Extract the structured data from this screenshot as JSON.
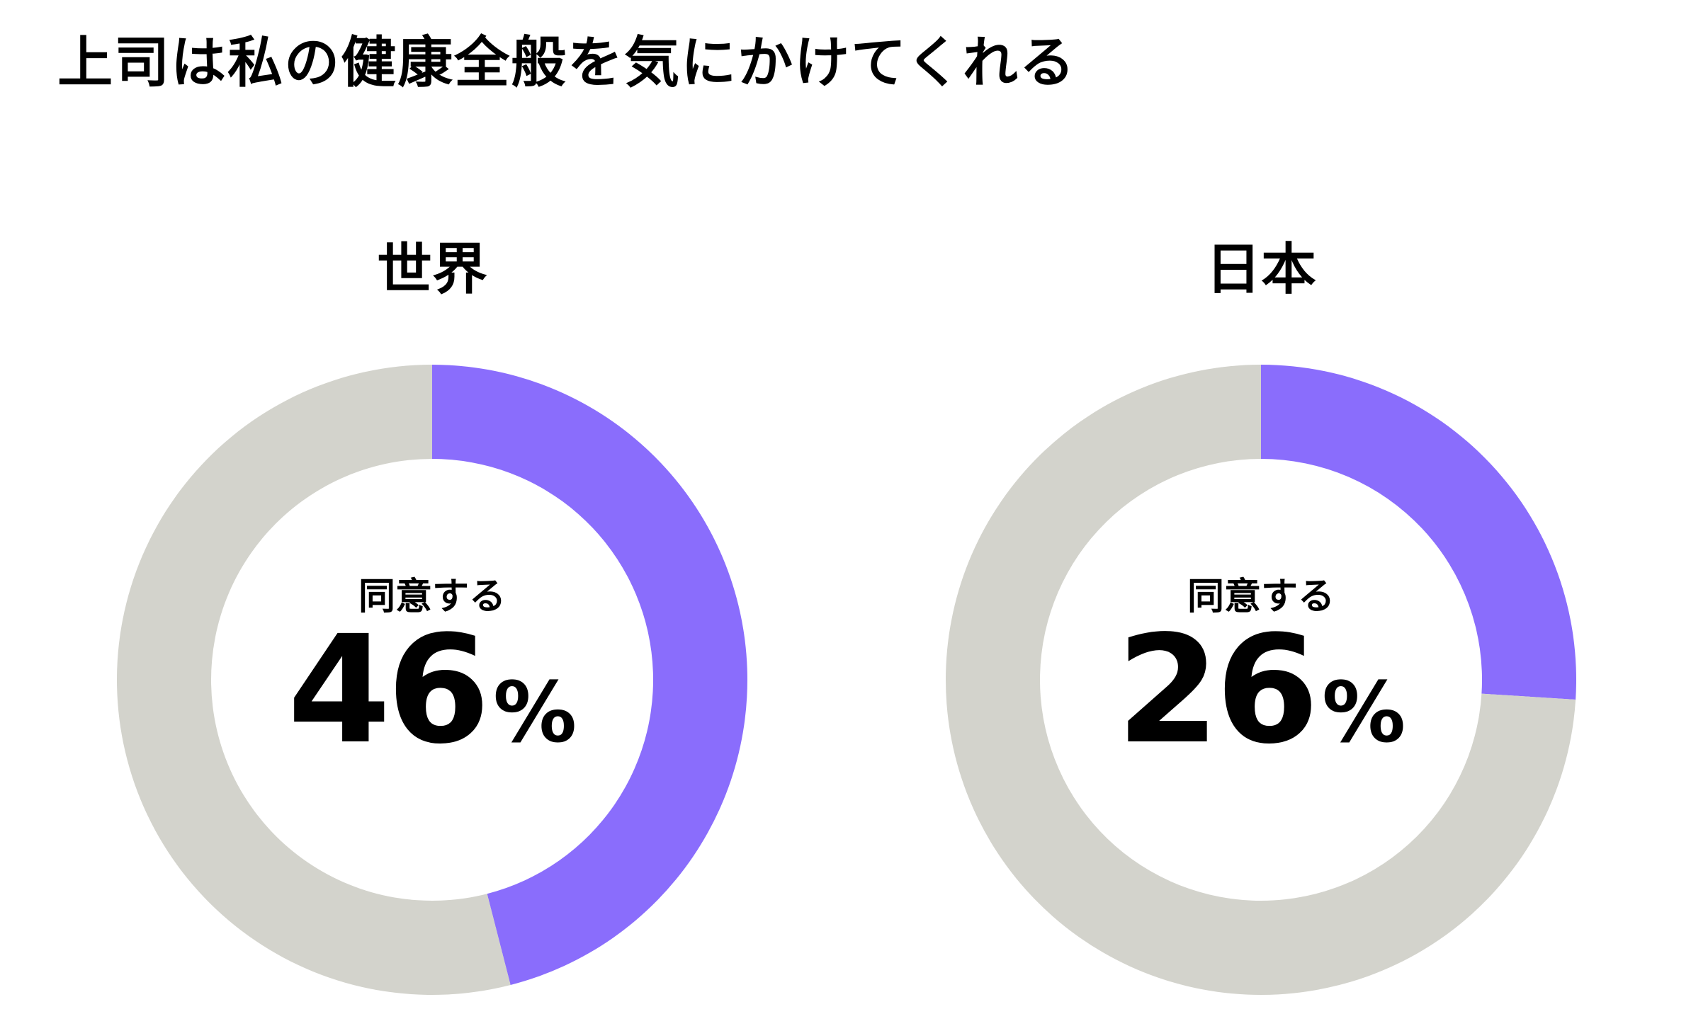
{
  "title": "上司は私の健康全般を気にかけてくれる",
  "colors": {
    "agree": "#8a6dfc",
    "rest": "#d3d3cc",
    "background": "#ffffff",
    "text": "#000000"
  },
  "chart_data": [
    {
      "type": "pie",
      "title": "世界",
      "center_label": "同意する",
      "value": 46,
      "value_text": "46",
      "unit": "%",
      "slices": [
        {
          "label": "同意する",
          "value": 46,
          "color": "#8a6dfc"
        },
        {
          "label": "",
          "value": 54,
          "color": "#d3d3cc"
        }
      ]
    },
    {
      "type": "pie",
      "title": "日本",
      "center_label": "同意する",
      "value": 26,
      "value_text": "26",
      "unit": "%",
      "slices": [
        {
          "label": "同意する",
          "value": 26,
          "color": "#8a6dfc"
        },
        {
          "label": "",
          "value": 74,
          "color": "#d3d3cc"
        }
      ]
    }
  ]
}
